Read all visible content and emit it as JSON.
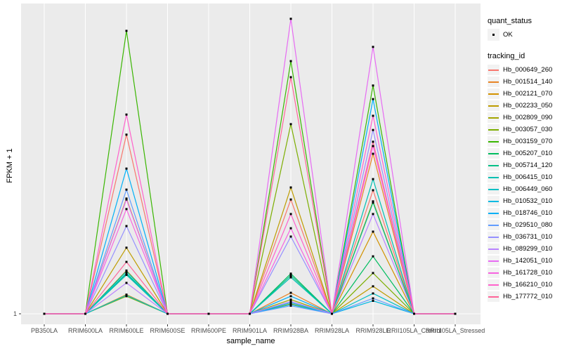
{
  "chart_data": {
    "type": "line",
    "title": "",
    "xlabel": "sample_name",
    "ylabel": "FPKM + 1",
    "categories": [
      "PB350LA",
      "RRIM600LA",
      "RRIM600LE",
      "RRIM600SE",
      "RRIM600PE",
      "RRIM901LA",
      "RRIM928BA",
      "RRIM928LA",
      "RRIM928LE",
      "RRII105LA_Control",
      "RRII105LA_Stressed"
    ],
    "y_tick_labels": [
      "1"
    ],
    "baseline_value": 1,
    "grid": "vertical-major-plus-baseline",
    "legend_position": "right",
    "point_shape": "small-black-square",
    "series": [
      {
        "name": "Hb_000649_260",
        "color": "#F8766D",
        "relative_heights": [
          0,
          0,
          0.58,
          0,
          0,
          0,
          0.37,
          0,
          0.4,
          0,
          0
        ]
      },
      {
        "name": "Hb_001514_140",
        "color": "#E88526",
        "relative_heights": [
          0,
          0,
          0.14,
          0,
          0,
          0,
          0.068,
          0,
          0.518,
          0,
          0
        ]
      },
      {
        "name": "Hb_002121_070",
        "color": "#D39200",
        "relative_heights": [
          0,
          0,
          0.062,
          0,
          0,
          0,
          0.032,
          0,
          0.266,
          0,
          0
        ]
      },
      {
        "name": "Hb_002233_050",
        "color": "#BE9C00",
        "relative_heights": [
          0,
          0,
          0.214,
          0,
          0,
          0,
          0.409,
          0,
          0.089,
          0,
          0
        ]
      },
      {
        "name": "Hb_002809_090",
        "color": "#A3A500",
        "relative_heights": [
          0,
          0,
          0.373,
          0,
          0,
          0,
          0.046,
          0,
          0.364,
          0,
          0
        ]
      },
      {
        "name": "Hb_003057_030",
        "color": "#7CAE00",
        "relative_heights": [
          0,
          0,
          0.057,
          0,
          0,
          0,
          0.614,
          0,
          0.132,
          0,
          0
        ]
      },
      {
        "name": "Hb_003159_070",
        "color": "#39B600",
        "relative_heights": [
          0,
          0,
          0.916,
          0,
          0,
          0,
          0.818,
          0,
          0.739,
          0,
          0
        ]
      },
      {
        "name": "Hb_005207_010",
        "color": "#00BD5F",
        "relative_heights": [
          0,
          0,
          0.13,
          0,
          0,
          0,
          0.13,
          0,
          0.186,
          0,
          0
        ]
      },
      {
        "name": "Hb_005714_120",
        "color": "#00C087",
        "relative_heights": [
          0,
          0,
          0.138,
          0,
          0,
          0,
          0.124,
          0,
          0.36,
          0,
          0
        ]
      },
      {
        "name": "Hb_006415_010",
        "color": "#00C0B2",
        "relative_heights": [
          0,
          0,
          0.126,
          0,
          0,
          0,
          0.118,
          0,
          0.436,
          0,
          0
        ]
      },
      {
        "name": "Hb_006449_060",
        "color": "#00BFC4",
        "relative_heights": [
          0,
          0,
          0.132,
          0,
          0,
          0,
          0.03,
          0,
          0.066,
          0,
          0
        ]
      },
      {
        "name": "Hb_010532_010",
        "color": "#00BAE2",
        "relative_heights": [
          0,
          0,
          0.06,
          0,
          0,
          0,
          0.036,
          0,
          0.042,
          0,
          0
        ]
      },
      {
        "name": "Hb_018746_010",
        "color": "#00B0F6",
        "relative_heights": [
          0,
          0,
          0.47,
          0,
          0,
          0,
          0.057,
          0,
          0.695,
          0,
          0
        ]
      },
      {
        "name": "Hb_029510_080",
        "color": "#619CFF",
        "relative_heights": [
          0,
          0,
          0.402,
          0,
          0,
          0,
          0.026,
          0,
          0.05,
          0,
          0
        ]
      },
      {
        "name": "Hb_036731_010",
        "color": "#9590FF",
        "relative_heights": [
          0,
          0,
          0.284,
          0,
          0,
          0,
          0.25,
          0,
          0.595,
          0,
          0
        ]
      },
      {
        "name": "Hb_089299_010",
        "color": "#B983FF",
        "relative_heights": [
          0,
          0,
          0.1,
          0,
          0,
          0,
          0.04,
          0,
          0.323,
          0,
          0
        ]
      },
      {
        "name": "Hb_142051_010",
        "color": "#E76BF3",
        "relative_heights": [
          0,
          0,
          0.37,
          0,
          0,
          0,
          0.955,
          0,
          0.864,
          0,
          0
        ]
      },
      {
        "name": "Hb_161728_010",
        "color": "#F763E0",
        "relative_heights": [
          0,
          0,
          0.339,
          0,
          0,
          0,
          0.277,
          0,
          0.543,
          0,
          0
        ]
      },
      {
        "name": "Hb_166210_010",
        "color": "#FF61CC",
        "relative_heights": [
          0,
          0,
          0.645,
          0,
          0,
          0,
          0.323,
          0,
          0.641,
          0,
          0
        ]
      },
      {
        "name": "Hb_177772_010",
        "color": "#FF6599",
        "relative_heights": [
          0,
          0,
          0.168,
          0,
          0,
          0,
          0.766,
          0,
          0.557,
          0,
          0
        ]
      }
    ]
  },
  "legend": {
    "quant_status": {
      "title": "quant_status",
      "items": [
        {
          "label": "OK"
        }
      ]
    },
    "tracking_id": {
      "title": "tracking_id"
    }
  },
  "colors": {
    "panel_bg": "#EBEBEB",
    "grid": "#FFFFFF",
    "key_bg": "#F2F2F2",
    "axis_text": "#4D4D4D",
    "tick": "#333333",
    "point": "#000000"
  }
}
